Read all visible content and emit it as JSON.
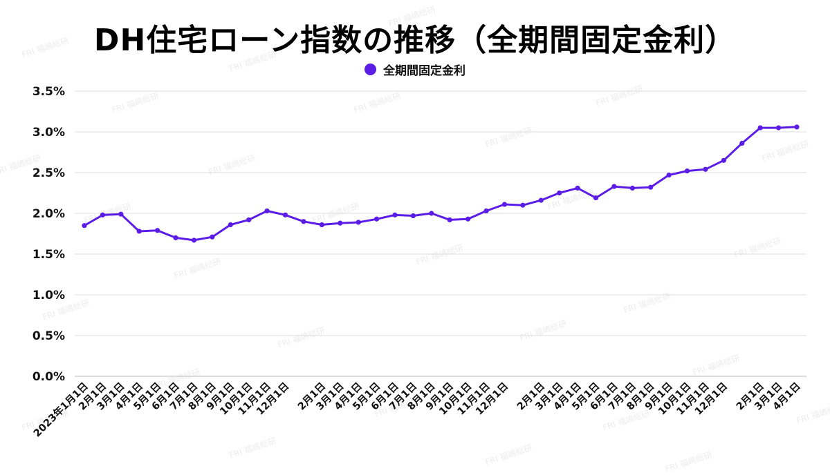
{
  "chart_data": {
    "type": "line",
    "title": "DH住宅ローン指数の推移（全期間固定金利）",
    "xlabel": "",
    "ylabel": "",
    "ylim": [
      0,
      3.5
    ],
    "yticks": [
      "0.0%",
      "0.5%",
      "1.0%",
      "1.5%",
      "2.0%",
      "2.5%",
      "3.0%",
      "3.5%"
    ],
    "grid": true,
    "legend_position": "top-center",
    "x": [
      "2023年1月1日",
      "2月1日",
      "3月1日",
      "4月1日",
      "5月1日",
      "6月1日",
      "7月1日",
      "8月1日",
      "9月1日",
      "10月1日",
      "11月1日",
      "12月1日",
      "",
      "2月1日",
      "3月1日",
      "4月1日",
      "5月1日",
      "6月1日",
      "7月1日",
      "8月1日",
      "9月1日",
      "10月1日",
      "11月1日",
      "12月1日",
      "",
      "2月1日",
      "3月1日",
      "4月1日",
      "5月1日",
      "6月1日",
      "7月1日",
      "8月1日",
      "9月1日",
      "10月1日",
      "11月1日",
      "12月1日",
      "",
      "2月1日",
      "3月1日",
      "4月1日"
    ],
    "series": [
      {
        "name": "全期間固定金利",
        "color": "#5b1de6",
        "values": [
          1.85,
          1.98,
          1.99,
          1.78,
          1.79,
          1.7,
          1.67,
          1.71,
          1.86,
          1.92,
          2.03,
          1.98,
          1.9,
          1.86,
          1.88,
          1.89,
          1.93,
          1.98,
          1.97,
          2.0,
          1.92,
          1.93,
          2.03,
          2.11,
          2.1,
          2.16,
          2.25,
          2.31,
          2.19,
          2.33,
          2.31,
          2.32,
          2.47,
          2.52,
          2.54,
          2.65,
          2.86,
          3.05,
          3.05,
          3.06
        ]
      }
    ]
  },
  "header": {
    "title": "DH住宅ローン指数の推移（全期間固定金利）"
  },
  "legend": {
    "label": "全期間固定金利",
    "color": "#5b1de6"
  },
  "watermark": {
    "text": "FRI 福嶋総研"
  }
}
